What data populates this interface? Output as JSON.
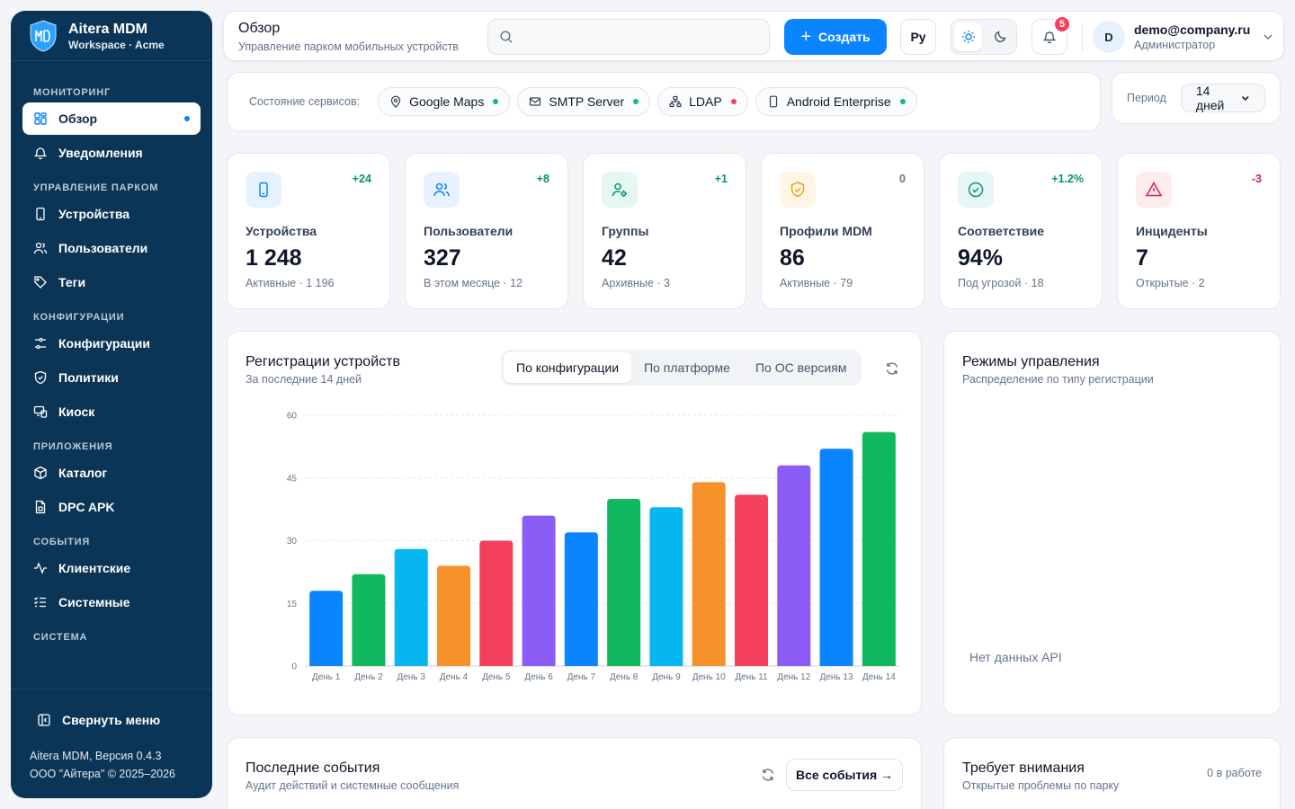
{
  "brand": {
    "title": "Aitera MDM",
    "subtitle": "Workspace · Acme"
  },
  "sidebar": {
    "sections": [
      {
        "title": "МОНИТОРИНГ",
        "items": [
          {
            "label": "Обзор",
            "icon": "grid-icon",
            "active": true
          },
          {
            "label": "Уведомления",
            "icon": "bell-icon"
          }
        ]
      },
      {
        "title": "УПРАВЛЕНИЕ ПАРКОМ",
        "items": [
          {
            "label": "Устройства",
            "icon": "phone-icon"
          },
          {
            "label": "Пользователи",
            "icon": "users-icon"
          },
          {
            "label": "Теги",
            "icon": "tag-icon"
          }
        ]
      },
      {
        "title": "КОНФИГУРАЦИИ",
        "items": [
          {
            "label": "Конфигурации",
            "icon": "sliders-icon"
          },
          {
            "label": "Политики",
            "icon": "shield-icon"
          },
          {
            "label": "Киоск",
            "icon": "kiosk-icon"
          }
        ]
      },
      {
        "title": "ПРИЛОЖЕНИЯ",
        "items": [
          {
            "label": "Каталог",
            "icon": "box-icon"
          },
          {
            "label": "DPC APK",
            "icon": "file-icon"
          }
        ]
      },
      {
        "title": "СОБЫТИЯ",
        "items": [
          {
            "label": "Клиентские",
            "icon": "activity-icon"
          },
          {
            "label": "Системные",
            "icon": "list-check-icon"
          }
        ]
      },
      {
        "title": "СИСТЕМА",
        "items": []
      }
    ],
    "collapse_label": "Свернуть меню",
    "version": "Aitera MDM, Версия 0.4.3",
    "copyright": "ООО \"Айтера\" © 2025–2026"
  },
  "topbar": {
    "title": "Обзор",
    "subtitle": "Управление парком мобильных устройств",
    "search_placeholder": "",
    "create_label": "Создать",
    "lang": "Ру",
    "notifications_count": "5",
    "user_email": "demo@company.ru",
    "user_role": "Администратор",
    "avatar_letter": "D"
  },
  "services": {
    "label": "Состояние сервисов:",
    "items": [
      {
        "name": "Google Maps",
        "icon": "map-pin-icon",
        "status_color": "#10b981"
      },
      {
        "name": "SMTP Server",
        "icon": "mail-icon",
        "status_color": "#10b981"
      },
      {
        "name": "LDAP",
        "icon": "network-icon",
        "status_color": "#f43f5e"
      },
      {
        "name": "Android Enterprise",
        "icon": "phone-icon",
        "status_color": "#10b981"
      }
    ]
  },
  "period": {
    "label": "Период",
    "value": "14 дней"
  },
  "stats": [
    {
      "label": "Устройства",
      "value": "1 248",
      "sub": "Активные · 1 196",
      "delta": "+24",
      "delta_color": "#059669",
      "icon": "phone-icon",
      "icon_color": "#0a84ff",
      "icon_bg": "#e6f2ff"
    },
    {
      "label": "Пользователи",
      "value": "327",
      "sub": "В этом месяце · 12",
      "delta": "+8",
      "delta_color": "#059669",
      "icon": "users-icon",
      "icon_color": "#0a84ff",
      "icon_bg": "#e6f2ff"
    },
    {
      "label": "Группы",
      "value": "42",
      "sub": "Архивные · 3",
      "delta": "+1",
      "delta_color": "#059669",
      "icon": "user-gear-icon",
      "icon_color": "#059669",
      "icon_bg": "#e6f7ef"
    },
    {
      "label": "Профили MDM",
      "value": "86",
      "sub": "Активные · 79",
      "delta": "0",
      "delta_color": "#64748b",
      "icon": "shield-check-icon",
      "icon_color": "#f59e0b",
      "icon_bg": "#fef5e6"
    },
    {
      "label": "Соответствие",
      "value": "94%",
      "sub": "Под угрозой · 18",
      "delta": "+1.2%",
      "delta_color": "#059669",
      "icon": "check-circle-icon",
      "icon_color": "#0d9488",
      "icon_bg": "#e6f6f4"
    },
    {
      "label": "Инциденты",
      "value": "7",
      "sub": "Открытые · 2",
      "delta": "-3",
      "delta_color": "#e11d48",
      "icon": "alert-triangle-icon",
      "icon_color": "#e11d48",
      "icon_bg": "#fdecef"
    }
  ],
  "registrations": {
    "title": "Регистрации устройств",
    "subtitle": "За последние 14 дней",
    "tabs": [
      "По конфигурации",
      "По платформе",
      "По ОС версиям"
    ],
    "active_tab": 0
  },
  "chart_data": {
    "type": "bar",
    "categories": [
      "День 1",
      "День 2",
      "День 3",
      "День 4",
      "День 5",
      "День 6",
      "День 7",
      "День 8",
      "День 9",
      "День 10",
      "День 11",
      "День 12",
      "День 13",
      "День 14"
    ],
    "values": [
      18,
      22,
      28,
      24,
      30,
      36,
      32,
      40,
      38,
      44,
      41,
      48,
      52,
      56
    ],
    "bar_colors": [
      "#0a84ff",
      "#10b95f",
      "#06b6f0",
      "#f7922a",
      "#f43f5e",
      "#8b5cf6",
      "#0a84ff",
      "#10b95f",
      "#06b6f0",
      "#f7922a",
      "#f43f5e",
      "#8b5cf6",
      "#0a84ff",
      "#10b95f"
    ],
    "yticks": [
      0,
      15,
      30,
      45,
      60
    ],
    "ylim": [
      0,
      60
    ],
    "title": "",
    "xlabel": "",
    "ylabel": "",
    "grid": true
  },
  "modes": {
    "title": "Режимы управления",
    "subtitle": "Распределение по типу регистрации",
    "empty": "Нет данных API"
  },
  "events": {
    "title": "Последние события",
    "subtitle": "Аудит действий и системные сообщения",
    "all_label": "Все события →"
  },
  "attention": {
    "title": "Требует внимания",
    "subtitle": "Открытые проблемы по парку",
    "count_label": "0 в работе"
  }
}
